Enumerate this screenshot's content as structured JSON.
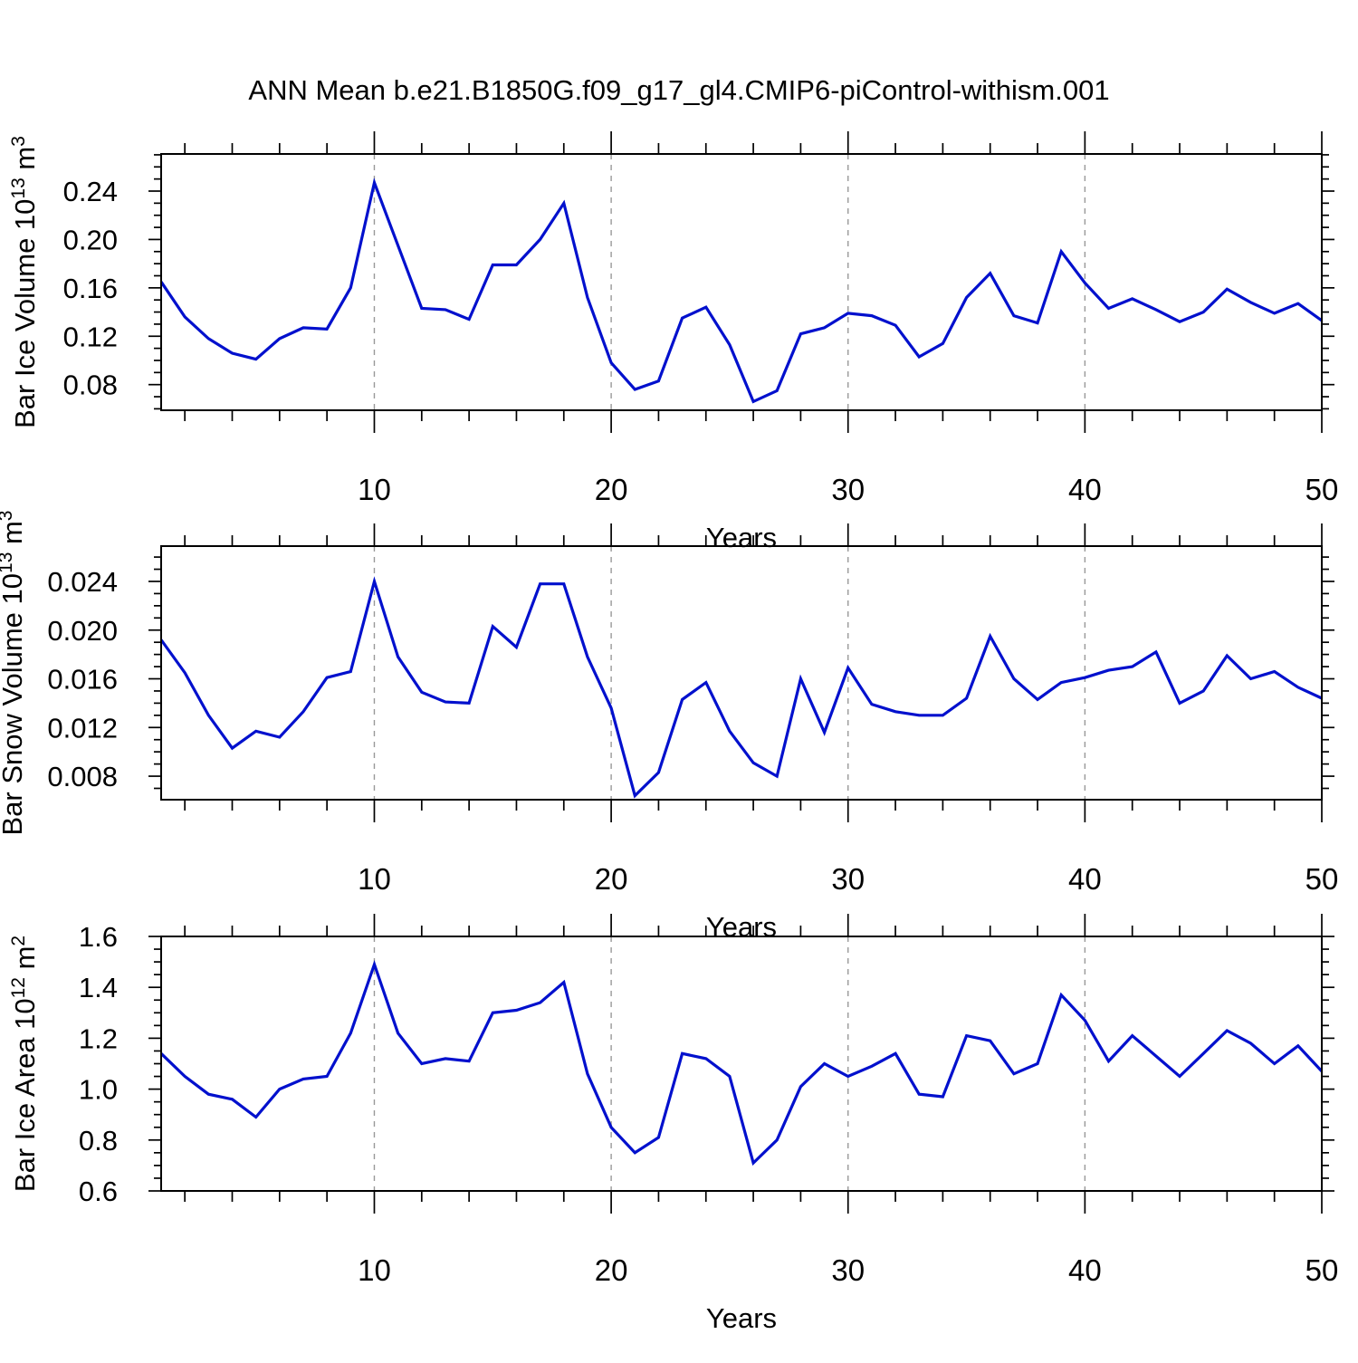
{
  "header": {
    "title": "ANN Mean b.e21.B1850G.f09_g17_gl4.CMIP6-piControl-withism.001"
  },
  "style": {
    "line_color": "#0010cd",
    "gridline_color": "#999999",
    "frame_color": "#000000",
    "text_color": "#000000"
  },
  "x_axis": {
    "label": "Years",
    "x_start": 1,
    "x_step": 1,
    "range": [
      1,
      50
    ],
    "major_ticks": [
      10,
      20,
      30,
      40,
      50
    ],
    "major_tick_labels": [
      "10",
      "20",
      "30",
      "40",
      "50"
    ],
    "minor_tick_step": 2,
    "gridlines_at": [
      10,
      20,
      30,
      40
    ]
  },
  "chart_data": [
    {
      "type": "line",
      "name": "bar-ice-volume",
      "ylabel": "Bar Ice Volume 10^13 m^3",
      "ylabel_parts": [
        {
          "t": "Bar Ice Volume 10"
        },
        {
          "t": "13",
          "sup": true
        },
        {
          "t": " m"
        },
        {
          "t": "3",
          "sup": true
        }
      ],
      "xlabel": "Years",
      "ylim": [
        0.0588,
        0.2707
      ],
      "yticks": [
        0.08,
        0.12,
        0.16,
        0.2,
        0.24
      ],
      "ytick_labels": [
        "0.08",
        "0.12",
        "0.16",
        "0.20",
        "0.24"
      ],
      "y_minor_step": 0.01,
      "values": [
        0.165,
        0.136,
        0.118,
        0.106,
        0.101,
        0.118,
        0.127,
        0.126,
        0.16,
        0.247,
        0.195,
        0.143,
        0.142,
        0.134,
        0.179,
        0.179,
        0.2,
        0.23,
        0.152,
        0.098,
        0.076,
        0.083,
        0.135,
        0.144,
        0.113,
        0.066,
        0.075,
        0.122,
        0.127,
        0.139,
        0.137,
        0.129,
        0.103,
        0.114,
        0.152,
        0.172,
        0.137,
        0.131,
        0.19,
        0.164,
        0.143,
        0.151,
        0.142,
        0.132,
        0.14,
        0.159,
        0.148,
        0.139,
        0.147,
        0.133
      ]
    },
    {
      "type": "line",
      "name": "bar-snow-volume",
      "ylabel": "Bar Snow Volume 10^13 m^3",
      "ylabel_parts": [
        {
          "t": "Bar Snow Volume 10"
        },
        {
          "t": "13",
          "sup": true
        },
        {
          "t": " m"
        },
        {
          "t": "3",
          "sup": true
        }
      ],
      "xlabel": "Years",
      "ylim": [
        0.00607,
        0.0269
      ],
      "yticks": [
        0.008,
        0.012,
        0.016,
        0.02,
        0.024
      ],
      "ytick_labels": [
        "0.008",
        "0.012",
        "0.016",
        "0.020",
        "0.024"
      ],
      "y_minor_step": 0.001,
      "values": [
        0.0192,
        0.0165,
        0.013,
        0.0103,
        0.0117,
        0.0112,
        0.0133,
        0.0161,
        0.0166,
        0.024,
        0.0178,
        0.0149,
        0.0141,
        0.014,
        0.0203,
        0.0186,
        0.0238,
        0.0238,
        0.0178,
        0.0136,
        0.0064,
        0.0083,
        0.0143,
        0.0157,
        0.0117,
        0.0091,
        0.008,
        0.016,
        0.0116,
        0.0169,
        0.0139,
        0.0133,
        0.013,
        0.013,
        0.0144,
        0.0195,
        0.016,
        0.0143,
        0.0157,
        0.0161,
        0.0167,
        0.017,
        0.0182,
        0.014,
        0.015,
        0.0179,
        0.016,
        0.0166,
        0.0153,
        0.0144
      ]
    },
    {
      "type": "line",
      "name": "bar-ice-area",
      "ylabel": "Bar Ice Area 10^12 m^2",
      "ylabel_parts": [
        {
          "t": "Bar Ice Area 10"
        },
        {
          "t": "12",
          "sup": true
        },
        {
          "t": " m"
        },
        {
          "t": "2",
          "sup": true
        }
      ],
      "xlabel": "Years",
      "ylim": [
        0.6,
        1.6
      ],
      "yticks": [
        0.6,
        0.8,
        1.0,
        1.2,
        1.4,
        1.6
      ],
      "ytick_labels": [
        "0.6",
        "0.8",
        "1.0",
        "1.2",
        "1.4",
        "1.6"
      ],
      "y_minor_step": 0.05,
      "values": [
        1.14,
        1.05,
        0.98,
        0.96,
        0.89,
        1.0,
        1.04,
        1.05,
        1.22,
        1.49,
        1.22,
        1.1,
        1.12,
        1.11,
        1.3,
        1.31,
        1.34,
        1.42,
        1.06,
        0.85,
        0.75,
        0.81,
        1.14,
        1.12,
        1.05,
        0.71,
        0.8,
        1.01,
        1.1,
        1.05,
        1.09,
        1.14,
        0.98,
        0.97,
        1.21,
        1.19,
        1.06,
        1.1,
        1.37,
        1.27,
        1.11,
        1.21,
        1.13,
        1.05,
        1.14,
        1.23,
        1.18,
        1.1,
        1.17,
        1.07
      ]
    }
  ]
}
